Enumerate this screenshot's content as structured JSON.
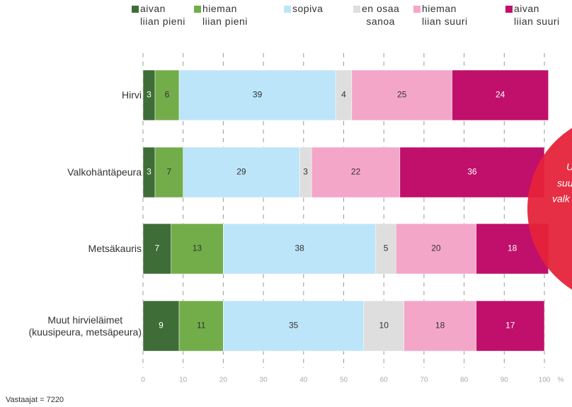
{
  "chart_data": {
    "type": "stacked-bar-horizontal",
    "categories": [
      "Hirvi",
      "Valkohäntäpeura",
      "Metsäkauris",
      "Muut hirvieläimet\n(kuusipeura, metsäpeura)"
    ],
    "series": [
      {
        "name": "aivan\nliian pieni",
        "color": "#3f6d37",
        "values": [
          3,
          3,
          7,
          9
        ]
      },
      {
        "name": "hieman\nliian pieni",
        "color": "#72ad4a",
        "values": [
          6,
          7,
          13,
          11
        ]
      },
      {
        "name": "sopiva",
        "color": "#bde5f9",
        "values": [
          39,
          29,
          38,
          35
        ]
      },
      {
        "name": "en osaa\nsanoa",
        "color": "#dedede",
        "values": [
          4,
          3,
          5,
          10
        ]
      },
      {
        "name": "hieman\nliian suuri",
        "color": "#f4a6c9",
        "values": [
          25,
          22,
          20,
          18
        ]
      },
      {
        "name": "aivan\nliian suuri",
        "color": "#c0106b",
        "values": [
          24,
          36,
          18,
          17
        ]
      }
    ],
    "xlim": [
      0,
      100
    ],
    "xticks": [
      0,
      10,
      20,
      30,
      40,
      50,
      60,
      70,
      80,
      90,
      100
    ],
    "x_unit": "%",
    "grid": true,
    "annotation": [
      "U",
      "suu",
      "valk"
    ],
    "footnote": "Vastaajat = 7220"
  }
}
